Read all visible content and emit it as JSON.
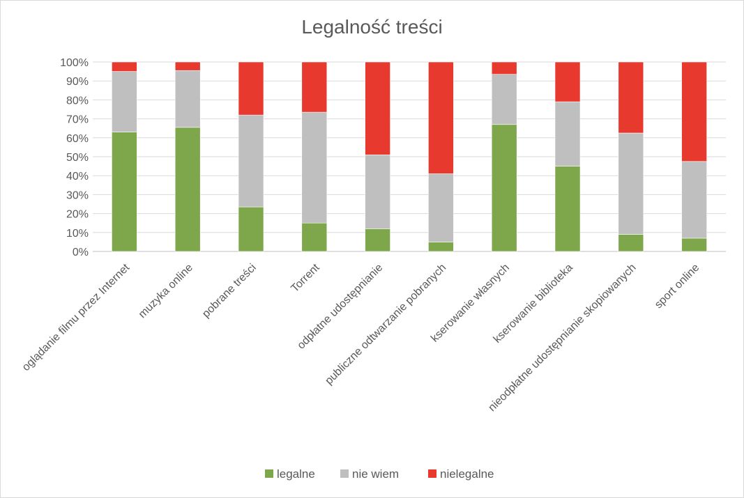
{
  "chart_data": {
    "type": "bar",
    "stacked": "percent",
    "title": "Legalność treści",
    "xlabel": "",
    "ylabel": "",
    "ylim": [
      0,
      100
    ],
    "yticks": [
      "0%",
      "10%",
      "20%",
      "30%",
      "40%",
      "50%",
      "60%",
      "70%",
      "80%",
      "90%",
      "100%"
    ],
    "grid": true,
    "legend_position": "bottom",
    "categories": [
      "oglądanie filmu przez Internet",
      "muzyka online",
      "pobrane treści",
      "Torrent",
      "odpłatne udostępnianie",
      "publiczne odtwarzanie pobranych",
      "kserowanie własnych",
      "kserowanie biblioteka",
      "nieodpłatne udostępnianie skopiowanych",
      "sport online"
    ],
    "series": [
      {
        "name": "legalne",
        "color": "#7ea64a",
        "values": [
          63,
          65.5,
          23.5,
          15,
          12,
          5,
          67,
          45,
          9,
          7
        ]
      },
      {
        "name": "nie wiem",
        "color": "#bfbfbf",
        "values": [
          32,
          30,
          48.5,
          58.5,
          39,
          36,
          26.5,
          34,
          53.5,
          40.5
        ]
      },
      {
        "name": "nielegalne",
        "color": "#e8392f",
        "values": [
          5,
          4.5,
          28,
          26.5,
          49,
          59,
          6.5,
          21,
          37.5,
          52.5
        ]
      }
    ]
  }
}
